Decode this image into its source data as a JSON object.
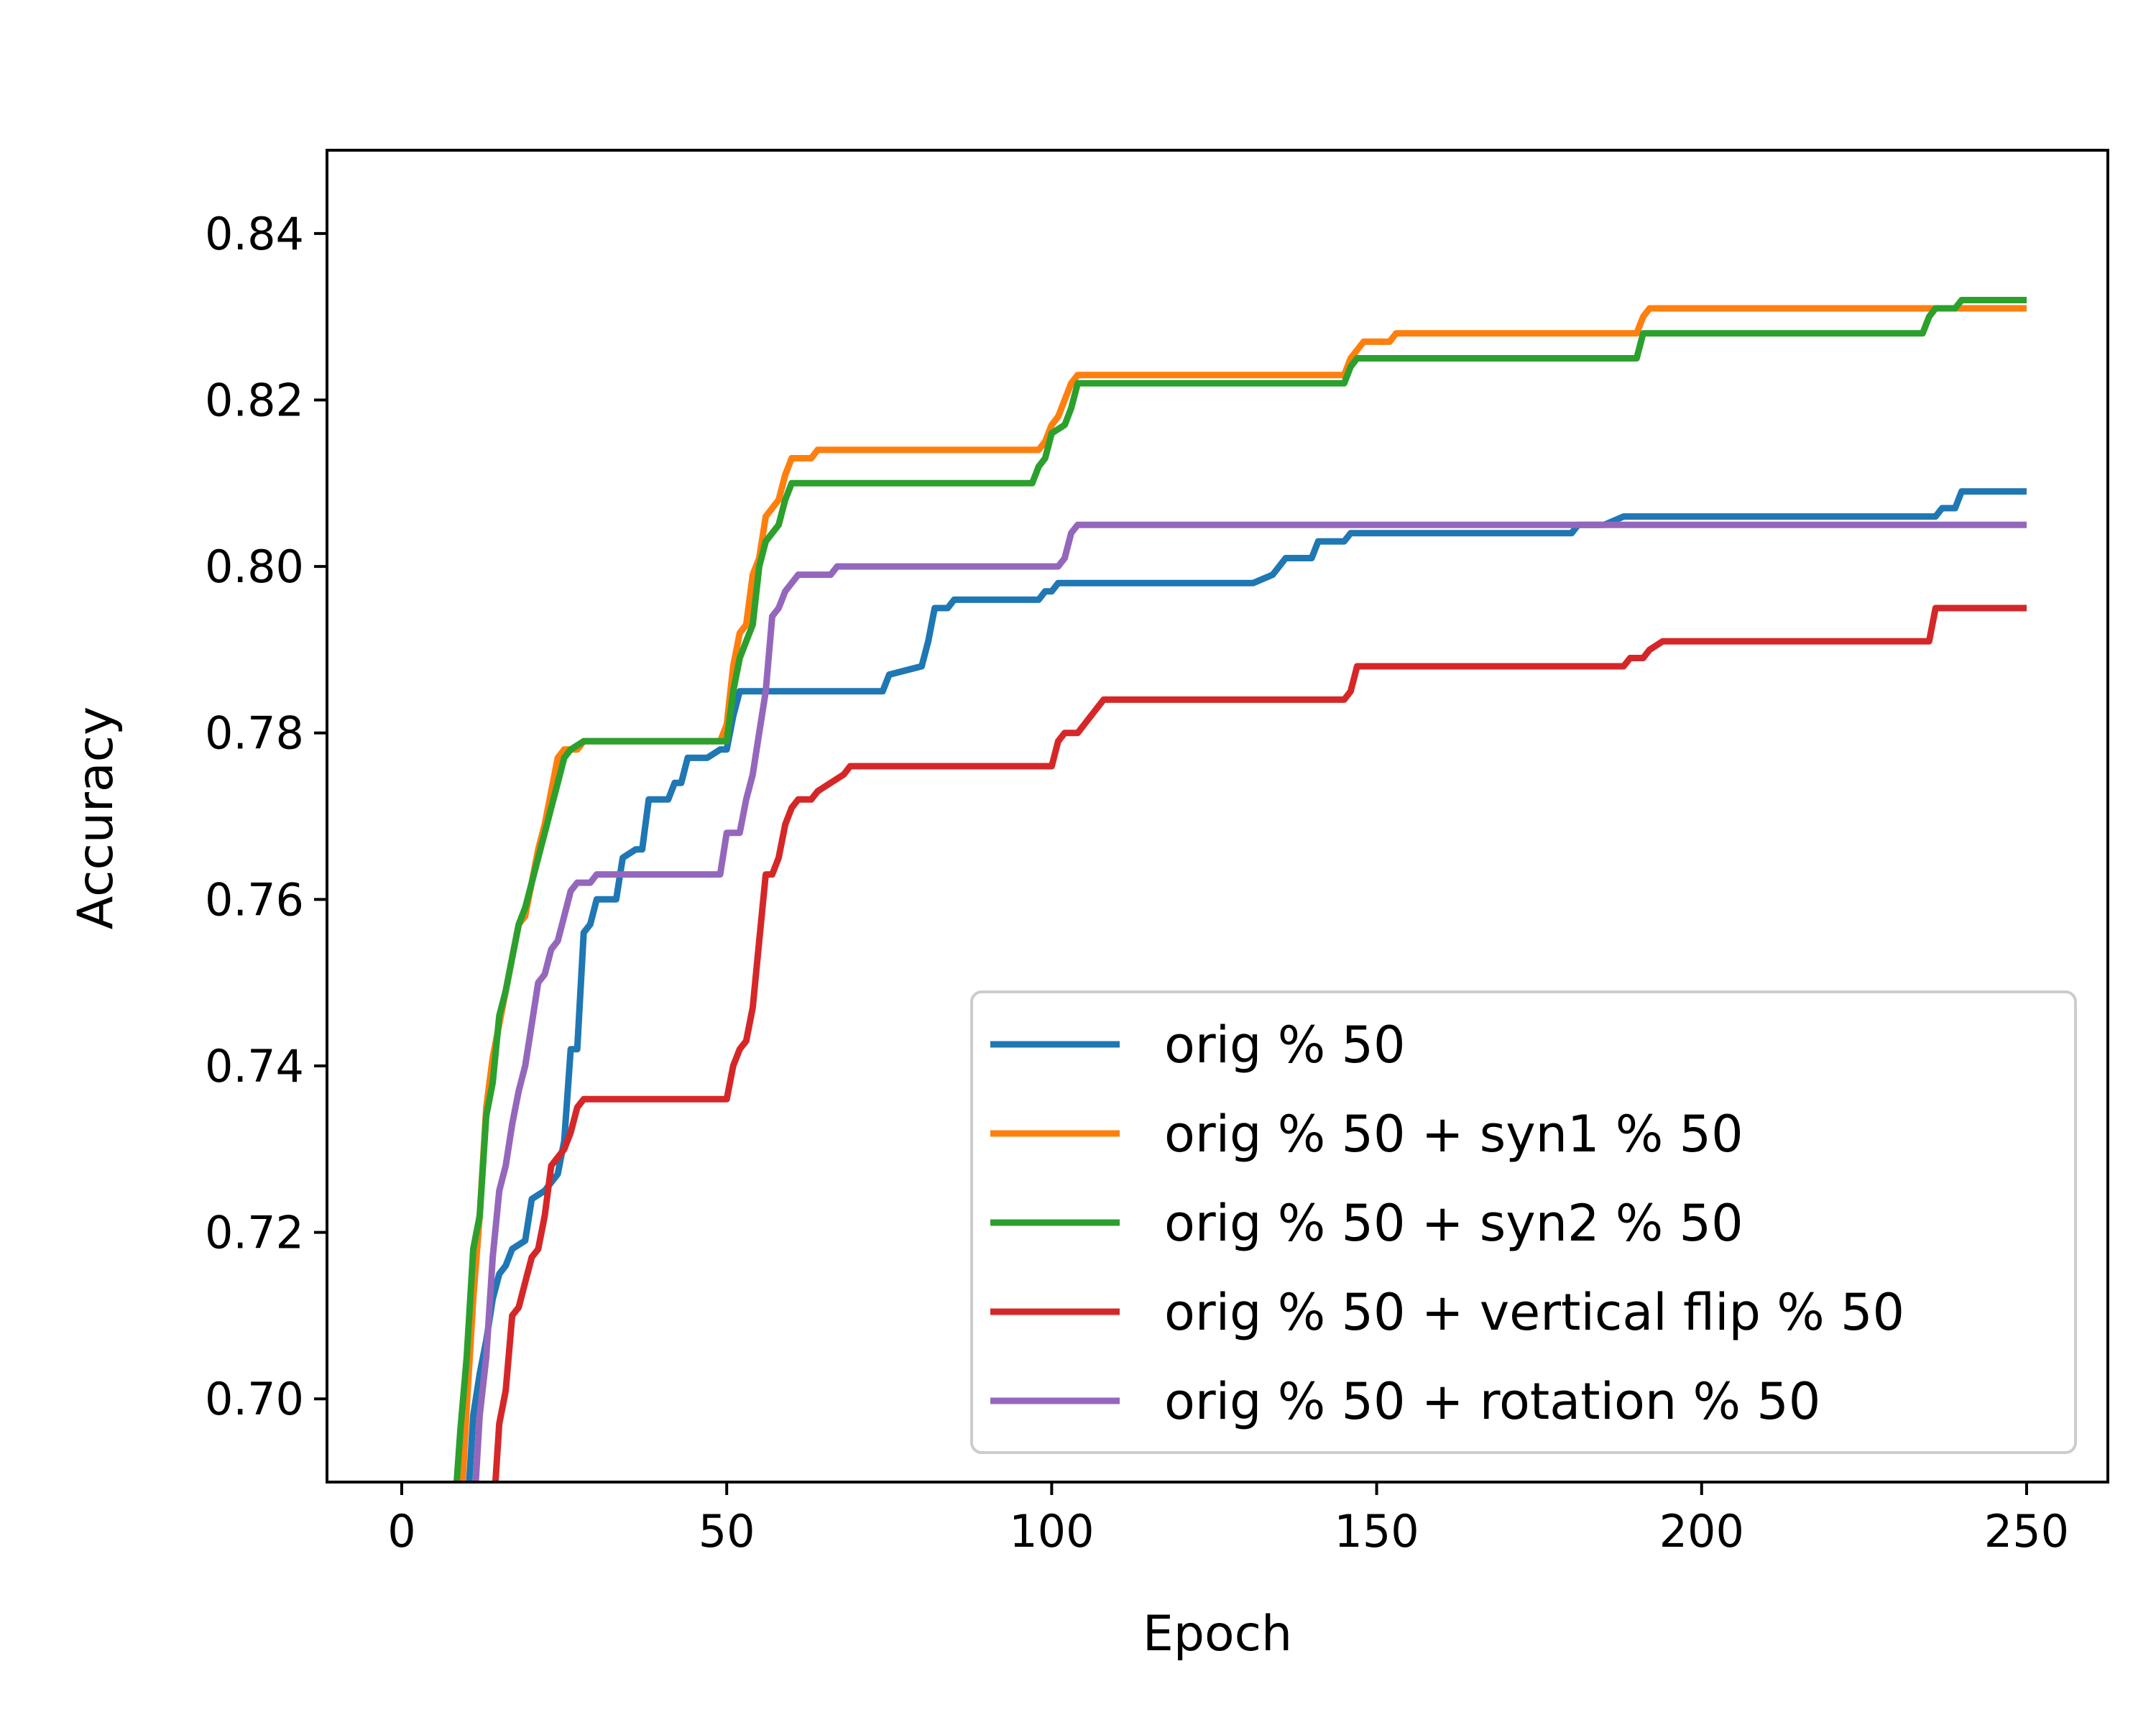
{
  "chart_data": {
    "type": "line",
    "title": "",
    "xlabel": "Epoch",
    "ylabel": "Accuracy",
    "xlim": [
      -11.5,
      262.5
    ],
    "ylim": [
      0.69,
      0.85
    ],
    "xticks": [
      0,
      50,
      100,
      150,
      200,
      250
    ],
    "yticks": [
      0.7,
      0.72,
      0.74,
      0.76,
      0.78,
      0.8,
      0.82,
      0.84
    ],
    "xtick_labels": [
      "0",
      "50",
      "100",
      "150",
      "200",
      "250"
    ],
    "ytick_labels": [
      "0.70",
      "0.72",
      "0.74",
      "0.76",
      "0.78",
      "0.80",
      "0.82",
      "0.84"
    ],
    "grid": false,
    "legend_position": "bottom-right",
    "series": [
      {
        "name": "orig % 50",
        "color": "#1f77b4",
        "points": [
          [
            10,
            0.685
          ],
          [
            11,
            0.698
          ],
          [
            12,
            0.703
          ],
          [
            13,
            0.707
          ],
          [
            14,
            0.712
          ],
          [
            15,
            0.715
          ],
          [
            16,
            0.716
          ],
          [
            17,
            0.718
          ],
          [
            19,
            0.719
          ],
          [
            20,
            0.724
          ],
          [
            22,
            0.725
          ],
          [
            23,
            0.726
          ],
          [
            24,
            0.727
          ],
          [
            25,
            0.731
          ],
          [
            26,
            0.742
          ],
          [
            27,
            0.742
          ],
          [
            28,
            0.756
          ],
          [
            29,
            0.757
          ],
          [
            30,
            0.76
          ],
          [
            33,
            0.76
          ],
          [
            34,
            0.765
          ],
          [
            36,
            0.766
          ],
          [
            37,
            0.766
          ],
          [
            38,
            0.772
          ],
          [
            41,
            0.772
          ],
          [
            42,
            0.774
          ],
          [
            43,
            0.774
          ],
          [
            44,
            0.777
          ],
          [
            46,
            0.777
          ],
          [
            47,
            0.777
          ],
          [
            49,
            0.778
          ],
          [
            50,
            0.778
          ],
          [
            51,
            0.782
          ],
          [
            52,
            0.785
          ],
          [
            74,
            0.785
          ],
          [
            75,
            0.787
          ],
          [
            80,
            0.788
          ],
          [
            81,
            0.791
          ],
          [
            82,
            0.795
          ],
          [
            84,
            0.795
          ],
          [
            85,
            0.796
          ],
          [
            98,
            0.796
          ],
          [
            99,
            0.797
          ],
          [
            100,
            0.797
          ],
          [
            101,
            0.798
          ],
          [
            130,
            0.798
          ],
          [
            131,
            0.798
          ],
          [
            134,
            0.799
          ],
          [
            135,
            0.8
          ],
          [
            136,
            0.801
          ],
          [
            140,
            0.801
          ],
          [
            141,
            0.803
          ],
          [
            145,
            0.803
          ],
          [
            146,
            0.804
          ],
          [
            180,
            0.804
          ],
          [
            181,
            0.805
          ],
          [
            185,
            0.805
          ],
          [
            188,
            0.806
          ],
          [
            236,
            0.806
          ],
          [
            237,
            0.807
          ],
          [
            239,
            0.807
          ],
          [
            240,
            0.809
          ],
          [
            250,
            0.809
          ]
        ]
      },
      {
        "name": "orig % 50 + syn1 % 50",
        "color": "#ff7f0e",
        "points": [
          [
            9,
            0.685
          ],
          [
            10,
            0.699
          ],
          [
            11,
            0.712
          ],
          [
            12,
            0.722
          ],
          [
            13,
            0.735
          ],
          [
            14,
            0.741
          ],
          [
            15,
            0.745
          ],
          [
            16,
            0.749
          ],
          [
            17,
            0.753
          ],
          [
            18,
            0.757
          ],
          [
            19,
            0.758
          ],
          [
            20,
            0.762
          ],
          [
            21,
            0.766
          ],
          [
            22,
            0.769
          ],
          [
            23,
            0.773
          ],
          [
            24,
            0.777
          ],
          [
            25,
            0.778
          ],
          [
            27,
            0.778
          ],
          [
            28,
            0.779
          ],
          [
            49,
            0.779
          ],
          [
            50,
            0.781
          ],
          [
            51,
            0.788
          ],
          [
            52,
            0.792
          ],
          [
            53,
            0.793
          ],
          [
            54,
            0.799
          ],
          [
            55,
            0.801
          ],
          [
            56,
            0.806
          ],
          [
            57,
            0.807
          ],
          [
            58,
            0.808
          ],
          [
            59,
            0.811
          ],
          [
            60,
            0.813
          ],
          [
            63,
            0.813
          ],
          [
            64,
            0.814
          ],
          [
            98,
            0.814
          ],
          [
            99,
            0.815
          ],
          [
            100,
            0.817
          ],
          [
            101,
            0.818
          ],
          [
            102,
            0.82
          ],
          [
            103,
            0.822
          ],
          [
            104,
            0.823
          ],
          [
            145,
            0.823
          ],
          [
            146,
            0.825
          ],
          [
            147,
            0.826
          ],
          [
            148,
            0.827
          ],
          [
            152,
            0.827
          ],
          [
            153,
            0.828
          ],
          [
            190,
            0.828
          ],
          [
            191,
            0.83
          ],
          [
            192,
            0.831
          ],
          [
            250,
            0.831
          ]
        ]
      },
      {
        "name": "orig % 50 + syn2 % 50",
        "color": "#2ca02c",
        "points": [
          [
            8,
            0.685
          ],
          [
            9,
            0.696
          ],
          [
            10,
            0.705
          ],
          [
            11,
            0.718
          ],
          [
            12,
            0.722
          ],
          [
            13,
            0.734
          ],
          [
            14,
            0.738
          ],
          [
            15,
            0.746
          ],
          [
            16,
            0.749
          ],
          [
            17,
            0.753
          ],
          [
            18,
            0.757
          ],
          [
            19,
            0.759
          ],
          [
            20,
            0.762
          ],
          [
            21,
            0.765
          ],
          [
            22,
            0.768
          ],
          [
            23,
            0.771
          ],
          [
            24,
            0.774
          ],
          [
            25,
            0.777
          ],
          [
            26,
            0.778
          ],
          [
            28,
            0.779
          ],
          [
            49,
            0.779
          ],
          [
            50,
            0.779
          ],
          [
            51,
            0.785
          ],
          [
            52,
            0.789
          ],
          [
            53,
            0.791
          ],
          [
            54,
            0.793
          ],
          [
            55,
            0.8
          ],
          [
            56,
            0.803
          ],
          [
            57,
            0.804
          ],
          [
            58,
            0.805
          ],
          [
            59,
            0.808
          ],
          [
            60,
            0.81
          ],
          [
            97,
            0.81
          ],
          [
            98,
            0.812
          ],
          [
            99,
            0.813
          ],
          [
            100,
            0.816
          ],
          [
            102,
            0.817
          ],
          [
            103,
            0.819
          ],
          [
            104,
            0.822
          ],
          [
            145,
            0.822
          ],
          [
            146,
            0.824
          ],
          [
            147,
            0.825
          ],
          [
            190,
            0.825
          ],
          [
            191,
            0.828
          ],
          [
            234,
            0.828
          ],
          [
            235,
            0.83
          ],
          [
            236,
            0.831
          ],
          [
            239,
            0.831
          ],
          [
            240,
            0.832
          ],
          [
            250,
            0.832
          ]
        ]
      },
      {
        "name": "orig % 50 + vertical flip % 50",
        "color": "#d62728",
        "points": [
          [
            14,
            0.685
          ],
          [
            15,
            0.697
          ],
          [
            16,
            0.701
          ],
          [
            17,
            0.71
          ],
          [
            18,
            0.711
          ],
          [
            19,
            0.714
          ],
          [
            20,
            0.717
          ],
          [
            21,
            0.718
          ],
          [
            22,
            0.722
          ],
          [
            23,
            0.728
          ],
          [
            24,
            0.729
          ],
          [
            25,
            0.73
          ],
          [
            26,
            0.732
          ],
          [
            27,
            0.735
          ],
          [
            28,
            0.736
          ],
          [
            49,
            0.736
          ],
          [
            50,
            0.736
          ],
          [
            51,
            0.74
          ],
          [
            52,
            0.742
          ],
          [
            53,
            0.743
          ],
          [
            54,
            0.747
          ],
          [
            55,
            0.755
          ],
          [
            56,
            0.763
          ],
          [
            57,
            0.763
          ],
          [
            58,
            0.765
          ],
          [
            59,
            0.769
          ],
          [
            60,
            0.771
          ],
          [
            61,
            0.772
          ],
          [
            63,
            0.772
          ],
          [
            64,
            0.773
          ],
          [
            66,
            0.774
          ],
          [
            68,
            0.775
          ],
          [
            69,
            0.776
          ],
          [
            100,
            0.776
          ],
          [
            101,
            0.779
          ],
          [
            102,
            0.78
          ],
          [
            104,
            0.78
          ],
          [
            105,
            0.781
          ],
          [
            107,
            0.783
          ],
          [
            108,
            0.784
          ],
          [
            145,
            0.784
          ],
          [
            146,
            0.785
          ],
          [
            147,
            0.788
          ],
          [
            188,
            0.788
          ],
          [
            189,
            0.789
          ],
          [
            191,
            0.789
          ],
          [
            192,
            0.79
          ],
          [
            194,
            0.791
          ],
          [
            235,
            0.791
          ],
          [
            236,
            0.795
          ],
          [
            250,
            0.795
          ]
        ]
      },
      {
        "name": "orig % 50 + rotation % 50",
        "color": "#9467bd",
        "points": [
          [
            11,
            0.685
          ],
          [
            12,
            0.698
          ],
          [
            13,
            0.705
          ],
          [
            14,
            0.717
          ],
          [
            15,
            0.725
          ],
          [
            16,
            0.728
          ],
          [
            17,
            0.733
          ],
          [
            18,
            0.737
          ],
          [
            19,
            0.74
          ],
          [
            20,
            0.745
          ],
          [
            21,
            0.75
          ],
          [
            22,
            0.751
          ],
          [
            23,
            0.754
          ],
          [
            24,
            0.755
          ],
          [
            25,
            0.758
          ],
          [
            26,
            0.761
          ],
          [
            27,
            0.762
          ],
          [
            29,
            0.762
          ],
          [
            30,
            0.763
          ],
          [
            49,
            0.763
          ],
          [
            50,
            0.768
          ],
          [
            52,
            0.768
          ],
          [
            53,
            0.772
          ],
          [
            54,
            0.775
          ],
          [
            55,
            0.78
          ],
          [
            56,
            0.785
          ],
          [
            57,
            0.794
          ],
          [
            58,
            0.795
          ],
          [
            59,
            0.797
          ],
          [
            60,
            0.798
          ],
          [
            61,
            0.799
          ],
          [
            66,
            0.799
          ],
          [
            67,
            0.8
          ],
          [
            101,
            0.8
          ],
          [
            102,
            0.801
          ],
          [
            103,
            0.804
          ],
          [
            104,
            0.805
          ],
          [
            250,
            0.805
          ]
        ]
      }
    ]
  }
}
